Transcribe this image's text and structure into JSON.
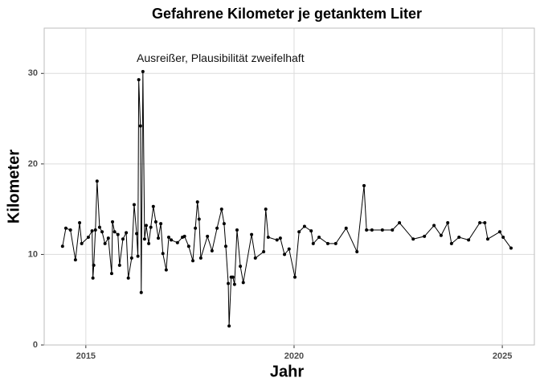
{
  "chart_data": {
    "type": "line",
    "title": "Gefahrene Kilometer je getanktem Liter",
    "xlabel": "Jahr",
    "ylabel": "Kilometer",
    "annotation": {
      "text": "Ausreißer, Plausibilität zweifelhaft",
      "x": 2016.22,
      "y": 31.6
    },
    "xlim": [
      2014.0,
      2025.77
    ],
    "xticks": [
      2015,
      2020,
      2025
    ],
    "ylim": [
      0,
      35
    ],
    "yticks": [
      0,
      10,
      20,
      30
    ],
    "grid": true,
    "color": "#000000",
    "x": [
      2014.44,
      2014.52,
      2014.63,
      2014.75,
      2014.85,
      2014.9,
      2015.06,
      2015.15,
      2015.17,
      2015.19,
      2015.23,
      2015.27,
      2015.33,
      2015.39,
      2015.46,
      2015.54,
      2015.62,
      2015.64,
      2015.69,
      2015.77,
      2015.81,
      2015.89,
      2015.97,
      2016.02,
      2016.1,
      2016.16,
      2016.22,
      2016.25,
      2016.27,
      2016.31,
      2016.33,
      2016.37,
      2016.41,
      2016.45,
      2016.51,
      2016.56,
      2016.62,
      2016.68,
      2016.74,
      2016.8,
      2016.85,
      2016.93,
      2016.99,
      2017.05,
      2017.2,
      2017.32,
      2017.37,
      2017.47,
      2017.57,
      2017.63,
      2017.68,
      2017.72,
      2017.76,
      2017.92,
      2018.03,
      2018.15,
      2018.26,
      2018.32,
      2018.36,
      2018.42,
      2018.44,
      2018.49,
      2018.53,
      2018.57,
      2018.63,
      2018.71,
      2018.78,
      2018.98,
      2019.07,
      2019.27,
      2019.32,
      2019.38,
      2019.59,
      2019.67,
      2019.77,
      2019.88,
      2020.02,
      2020.12,
      2020.25,
      2020.41,
      2020.46,
      2020.6,
      2020.81,
      2021.0,
      2021.25,
      2021.51,
      2021.68,
      2021.74,
      2021.87,
      2022.12,
      2022.36,
      2022.53,
      2022.86,
      2023.13,
      2023.36,
      2023.53,
      2023.69,
      2023.78,
      2023.96,
      2024.19,
      2024.46,
      2024.58,
      2024.65,
      2024.94,
      2025.02,
      2025.21
    ],
    "values": [
      10.9,
      12.9,
      12.7,
      9.4,
      13.5,
      11.2,
      11.9,
      12.6,
      7.4,
      8.8,
      12.7,
      18.1,
      13.0,
      12.5,
      11.2,
      11.8,
      7.9,
      13.6,
      12.5,
      12.2,
      8.8,
      11.7,
      12.4,
      7.4,
      9.6,
      15.5,
      12.3,
      9.8,
      29.3,
      24.2,
      5.8,
      30.2,
      11.7,
      13.2,
      11.2,
      13.0,
      15.3,
      13.6,
      11.8,
      13.4,
      10.1,
      8.3,
      11.9,
      11.6,
      11.3,
      11.9,
      12.0,
      10.9,
      9.3,
      12.9,
      15.8,
      13.9,
      9.6,
      12.0,
      10.4,
      12.9,
      15.0,
      13.4,
      10.9,
      6.8,
      2.1,
      7.5,
      7.5,
      6.7,
      12.7,
      8.7,
      6.9,
      12.2,
      9.6,
      10.3,
      15.0,
      11.9,
      11.6,
      11.8,
      10.0,
      10.6,
      7.5,
      12.5,
      13.1,
      12.6,
      11.2,
      11.9,
      11.2,
      11.2,
      12.9,
      10.3,
      17.6,
      12.7,
      12.7,
      12.7,
      12.7,
      13.5,
      11.7,
      12.0,
      13.2,
      12.1,
      13.5,
      11.2,
      11.9,
      11.6,
      13.5,
      13.5,
      11.7,
      12.5,
      11.9,
      10.7
    ]
  }
}
